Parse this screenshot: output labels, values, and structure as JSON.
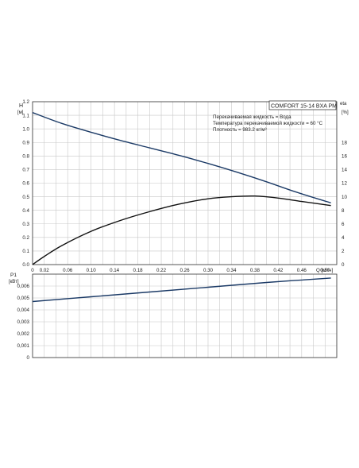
{
  "chart_data": [
    {
      "type": "line",
      "id": "head-efficiency",
      "model_title": "COMFORT 15-14 BXA PM",
      "info_lines": [
        "Перекачиваемая жидкость = Вода",
        "Температура перекачиваемой жидкости = 60 °C",
        "Плотность = 983.2 кг/м³"
      ],
      "left_axis": {
        "label": "H",
        "unit": "[м]",
        "ylim": [
          0,
          1.2
        ],
        "ticks": [
          "0.0",
          "0.1",
          "0.2",
          "0.3",
          "0.4",
          "0.5",
          "0.6",
          "0.7",
          "0.8",
          "0.9",
          "1.0",
          "1.1",
          "1.2"
        ]
      },
      "right_axis": {
        "label": "eta",
        "unit": "[%]",
        "ylim": [
          0,
          24
        ],
        "ticks": [
          "0",
          "2",
          "4",
          "6",
          "8",
          "10",
          "12",
          "14",
          "16",
          "18"
        ]
      },
      "x_axis": {
        "label": "Q [м³/ч]",
        "xlim": [
          0,
          0.52
        ],
        "ticks": [
          "0",
          "0.02",
          "0.06",
          "0.10",
          "0.14",
          "0.18",
          "0.22",
          "0.26",
          "0.30",
          "0.34",
          "0.38",
          "0.42",
          "0.46",
          "0.50"
        ]
      },
      "grid": true,
      "series": [
        {
          "axis": "left",
          "color": "#1b3a66",
          "x": [
            0,
            0.05,
            0.1,
            0.15,
            0.2,
            0.25,
            0.3,
            0.35,
            0.4,
            0.45,
            0.51
          ],
          "y": [
            1.12,
            1.04,
            0.975,
            0.915,
            0.86,
            0.805,
            0.745,
            0.68,
            0.61,
            0.535,
            0.455
          ]
        },
        {
          "axis": "right",
          "color": "#111111",
          "x": [
            0,
            0.02,
            0.05,
            0.1,
            0.15,
            0.2,
            0.25,
            0.3,
            0.34,
            0.38,
            0.42,
            0.46,
            0.51
          ],
          "y": [
            0,
            1.2,
            2.8,
            4.9,
            6.5,
            7.8,
            8.9,
            9.7,
            10.0,
            10.1,
            9.8,
            9.3,
            8.7
          ]
        }
      ]
    },
    {
      "type": "line",
      "id": "power",
      "left_axis": {
        "label": "P1",
        "unit": "[кВт]",
        "ylim": [
          0,
          0.007
        ],
        "ticks": [
          "0",
          "0,001",
          "0,002",
          "0,003",
          "0,004",
          "0,005",
          "0,006"
        ]
      },
      "x_axis": {
        "xlim": [
          0,
          0.52
        ]
      },
      "grid": true,
      "series": [
        {
          "axis": "left",
          "color": "#1b3a66",
          "x": [
            0,
            0.1,
            0.2,
            0.3,
            0.4,
            0.51
          ],
          "y": [
            0.0047,
            0.0051,
            0.0055,
            0.0059,
            0.0063,
            0.00667
          ]
        }
      ]
    }
  ]
}
